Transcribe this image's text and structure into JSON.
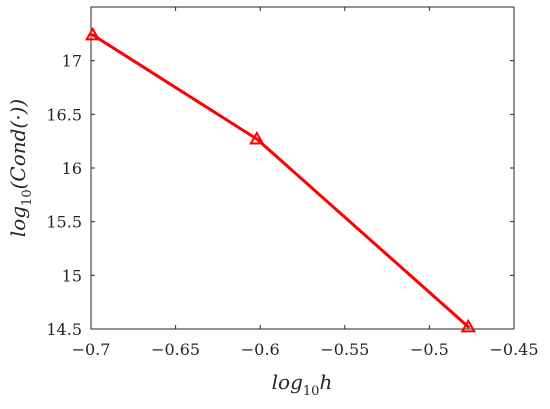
{
  "chart_data": {
    "type": "line",
    "title": "",
    "xlabel_main": "log",
    "xlabel_sub": "10",
    "xlabel_tail": "h",
    "ylabel_main": "log",
    "ylabel_sub": "10",
    "ylabel_tail": "(Cond(·))",
    "xlim": [
      -0.7,
      -0.45
    ],
    "ylim": [
      14.5,
      17.5
    ],
    "xticks": [
      -0.7,
      -0.65,
      -0.6,
      -0.55,
      -0.5,
      -0.45
    ],
    "xtick_labels": [
      "−0.7",
      "−0.65",
      "−0.6",
      "−0.55",
      "−0.5",
      "−0.45"
    ],
    "yticks": [
      14.5,
      15,
      15.5,
      16,
      16.5,
      17
    ],
    "ytick_labels": [
      "14.5",
      "15",
      "15.5",
      "16",
      "16.5",
      "17"
    ],
    "grid": false,
    "series": [
      {
        "x": [
          -0.699,
          -0.602,
          -0.477
        ],
        "y": [
          17.24,
          16.27,
          14.52
        ],
        "color": "#ff0000",
        "marker": "triangle"
      }
    ]
  }
}
